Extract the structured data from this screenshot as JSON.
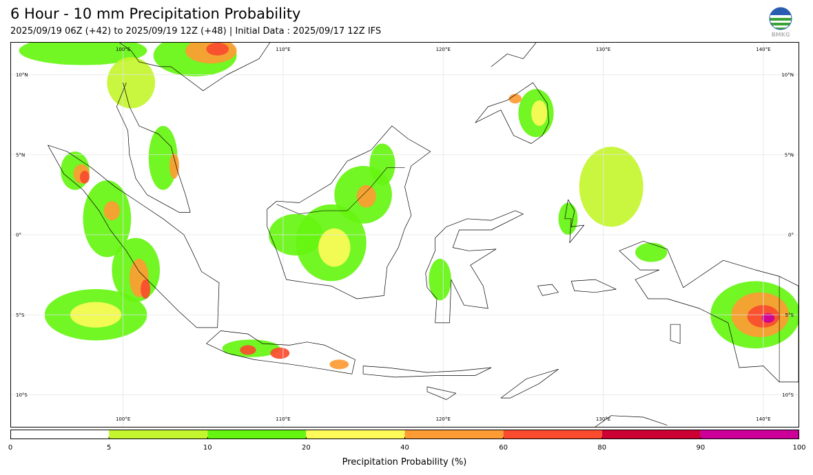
{
  "title": "6 Hour - 10 mm Precipitation Probability",
  "subtitle": "2025/09/19 06Z (+42) to 2025/09/19 12Z (+48) | Initial Data : 2025/09/17 12Z IFS",
  "logo": {
    "icon": "bmkg-logo-icon",
    "text": "BMKG"
  },
  "map": {
    "lon_range": [
      93,
      142.2
    ],
    "lat_range": [
      -12.0,
      12.0
    ],
    "lon_labels": [
      {
        "lon": 100,
        "text": "100°E"
      },
      {
        "lon": 110,
        "text": "110°E"
      },
      {
        "lon": 120,
        "text": "120°E"
      },
      {
        "lon": 130,
        "text": "130°E"
      },
      {
        "lon": 140,
        "text": "140°E"
      }
    ],
    "lat_labels": [
      {
        "lat": 10,
        "text": "10°N"
      },
      {
        "lat": 5,
        "text": "5°N"
      },
      {
        "lat": 0,
        "text": "0°"
      },
      {
        "lat": -5,
        "text": "5°S"
      },
      {
        "lat": -10,
        "text": "10°S"
      }
    ],
    "precip_areas": [
      {
        "lon": 97.5,
        "lat": 11.5,
        "rx": 4.0,
        "ry": 0.9,
        "level": 10
      },
      {
        "lon": 100.5,
        "lat": 9.5,
        "rx": 1.5,
        "ry": 1.6,
        "level": 5
      },
      {
        "lon": 104.5,
        "lat": 11.2,
        "rx": 2.6,
        "ry": 1.3,
        "level": 10
      },
      {
        "lon": 105.5,
        "lat": 11.5,
        "rx": 1.6,
        "ry": 0.8,
        "level": 40
      },
      {
        "lon": 105.9,
        "lat": 11.6,
        "rx": 0.7,
        "ry": 0.4,
        "level": 60
      },
      {
        "lon": 102.5,
        "lat": 4.8,
        "rx": 0.9,
        "ry": 2.0,
        "level": 10
      },
      {
        "lon": 103.2,
        "lat": 4.3,
        "rx": 0.3,
        "ry": 0.8,
        "level": 40
      },
      {
        "lon": 97.0,
        "lat": 4.0,
        "rx": 0.9,
        "ry": 1.2,
        "level": 10
      },
      {
        "lon": 97.4,
        "lat": 3.8,
        "rx": 0.5,
        "ry": 0.6,
        "level": 40
      },
      {
        "lon": 97.6,
        "lat": 3.6,
        "rx": 0.3,
        "ry": 0.4,
        "level": 60
      },
      {
        "lon": 99.0,
        "lat": 1.0,
        "rx": 1.5,
        "ry": 2.4,
        "level": 10
      },
      {
        "lon": 99.3,
        "lat": 1.5,
        "rx": 0.5,
        "ry": 0.6,
        "level": 40
      },
      {
        "lon": 100.8,
        "lat": -2.2,
        "rx": 1.5,
        "ry": 2.0,
        "level": 10
      },
      {
        "lon": 101.0,
        "lat": -2.7,
        "rx": 0.6,
        "ry": 1.2,
        "level": 40
      },
      {
        "lon": 101.4,
        "lat": -3.4,
        "rx": 0.3,
        "ry": 0.6,
        "level": 60
      },
      {
        "lon": 98.3,
        "lat": -5.0,
        "rx": 3.2,
        "ry": 1.6,
        "level": 10
      },
      {
        "lon": 98.3,
        "lat": -5.0,
        "rx": 1.6,
        "ry": 0.8,
        "level": 20
      },
      {
        "lon": 108.0,
        "lat": -7.1,
        "rx": 1.8,
        "ry": 0.55,
        "level": 10
      },
      {
        "lon": 107.8,
        "lat": -7.2,
        "rx": 0.5,
        "ry": 0.3,
        "level": 60
      },
      {
        "lon": 109.8,
        "lat": -7.4,
        "rx": 0.6,
        "ry": 0.35,
        "level": 60
      },
      {
        "lon": 113.5,
        "lat": -8.1,
        "rx": 0.6,
        "ry": 0.3,
        "level": 40
      },
      {
        "lon": 110.8,
        "lat": 0.0,
        "rx": 1.7,
        "ry": 1.3,
        "level": 10
      },
      {
        "lon": 113.0,
        "lat": -0.5,
        "rx": 2.2,
        "ry": 2.4,
        "level": 10
      },
      {
        "lon": 113.2,
        "lat": -0.8,
        "rx": 1.0,
        "ry": 1.2,
        "level": 20
      },
      {
        "lon": 115.0,
        "lat": 2.5,
        "rx": 1.8,
        "ry": 1.8,
        "level": 10
      },
      {
        "lon": 115.2,
        "lat": 2.4,
        "rx": 0.6,
        "ry": 0.7,
        "level": 40
      },
      {
        "lon": 116.2,
        "lat": 4.4,
        "rx": 0.8,
        "ry": 1.3,
        "level": 10
      },
      {
        "lon": 125.8,
        "lat": 7.6,
        "rx": 1.1,
        "ry": 1.5,
        "level": 10
      },
      {
        "lon": 126.0,
        "lat": 7.6,
        "rx": 0.5,
        "ry": 0.8,
        "level": 20
      },
      {
        "lon": 124.5,
        "lat": 8.5,
        "rx": 0.4,
        "ry": 0.3,
        "level": 40
      },
      {
        "lon": 127.8,
        "lat": 1.0,
        "rx": 0.6,
        "ry": 1.0,
        "level": 10
      },
      {
        "lon": 130.5,
        "lat": 3.0,
        "rx": 2.0,
        "ry": 2.5,
        "level": 5
      },
      {
        "lon": 133.0,
        "lat": -1.1,
        "rx": 1.0,
        "ry": 0.6,
        "level": 10
      },
      {
        "lon": 119.8,
        "lat": -2.8,
        "rx": 0.7,
        "ry": 1.3,
        "level": 10
      },
      {
        "lon": 139.5,
        "lat": -5.0,
        "rx": 2.8,
        "ry": 2.1,
        "level": 10
      },
      {
        "lon": 139.8,
        "lat": -5.0,
        "rx": 1.8,
        "ry": 1.4,
        "level": 40
      },
      {
        "lon": 140.0,
        "lat": -5.1,
        "rx": 1.0,
        "ry": 0.7,
        "level": 60
      },
      {
        "lon": 140.3,
        "lat": -5.2,
        "rx": 0.4,
        "ry": 0.3,
        "level": 90
      }
    ],
    "land_outlines": [
      {
        "name": "indochina",
        "points": [
          [
            99.5,
            12.2
          ],
          [
            100.5,
            11.5
          ],
          [
            101.0,
            10.8
          ],
          [
            102.3,
            10.5
          ],
          [
            103.0,
            10.5
          ],
          [
            105.0,
            9.0
          ],
          [
            106.5,
            10.0
          ],
          [
            108.5,
            11.0
          ],
          [
            109.3,
            12.2
          ]
        ]
      },
      {
        "name": "malay-peninsula",
        "points": [
          [
            100.2,
            9.5
          ],
          [
            99.6,
            8.0
          ],
          [
            100.3,
            6.5
          ],
          [
            100.4,
            5.0
          ],
          [
            100.8,
            3.5
          ],
          [
            101.5,
            2.5
          ],
          [
            103.5,
            1.4
          ],
          [
            104.2,
            1.4
          ],
          [
            103.9,
            2.5
          ],
          [
            103.4,
            4.0
          ],
          [
            103.0,
            5.5
          ],
          [
            102.2,
            6.3
          ],
          [
            101.0,
            6.8
          ],
          [
            100.4,
            8.0
          ],
          [
            100.0,
            9.5
          ]
        ]
      },
      {
        "name": "sumatra",
        "points": [
          [
            95.3,
            5.6
          ],
          [
            96.5,
            5.2
          ],
          [
            98.0,
            4.2
          ],
          [
            99.5,
            3.0
          ],
          [
            101.0,
            2.0
          ],
          [
            102.5,
            1.0
          ],
          [
            103.8,
            0.0
          ],
          [
            104.3,
            -1.0
          ],
          [
            104.9,
            -2.3
          ],
          [
            106.0,
            -3.0
          ],
          [
            105.9,
            -5.8
          ],
          [
            104.6,
            -5.8
          ],
          [
            103.5,
            -4.8
          ],
          [
            102.2,
            -3.5
          ],
          [
            101.0,
            -2.3
          ],
          [
            100.2,
            -1.0
          ],
          [
            99.2,
            0.3
          ],
          [
            98.5,
            1.5
          ],
          [
            97.5,
            2.8
          ],
          [
            96.3,
            3.8
          ],
          [
            95.3,
            5.6
          ]
        ]
      },
      {
        "name": "java",
        "points": [
          [
            105.2,
            -6.8
          ],
          [
            106.1,
            -6.0
          ],
          [
            107.8,
            -6.2
          ],
          [
            108.7,
            -6.8
          ],
          [
            110.4,
            -6.9
          ],
          [
            111.5,
            -6.7
          ],
          [
            112.6,
            -6.9
          ],
          [
            114.5,
            -7.8
          ],
          [
            114.3,
            -8.7
          ],
          [
            112.5,
            -8.4
          ],
          [
            110.5,
            -8.1
          ],
          [
            108.2,
            -7.8
          ],
          [
            106.5,
            -7.4
          ],
          [
            105.2,
            -6.8
          ]
        ]
      },
      {
        "name": "borneo",
        "points": [
          [
            109.0,
            1.6
          ],
          [
            109.6,
            2.1
          ],
          [
            111.0,
            2.0
          ],
          [
            113.0,
            3.2
          ],
          [
            114.0,
            4.6
          ],
          [
            115.5,
            5.3
          ],
          [
            116.8,
            6.8
          ],
          [
            117.8,
            6.0
          ],
          [
            119.2,
            5.2
          ],
          [
            118.0,
            4.3
          ],
          [
            117.6,
            3.0
          ],
          [
            118.0,
            1.2
          ],
          [
            117.6,
            0.4
          ],
          [
            117.2,
            -0.8
          ],
          [
            116.5,
            -2.0
          ],
          [
            116.3,
            -3.8
          ],
          [
            114.6,
            -4.0
          ],
          [
            113.0,
            -3.2
          ],
          [
            111.5,
            -3.0
          ],
          [
            110.2,
            -2.8
          ],
          [
            109.6,
            -1.0
          ],
          [
            109.0,
            0.5
          ],
          [
            109.0,
            1.6
          ]
        ]
      },
      {
        "name": "sulawesi",
        "points": [
          [
            119.5,
            -0.2
          ],
          [
            120.2,
            0.5
          ],
          [
            121.5,
            1.0
          ],
          [
            123.0,
            0.9
          ],
          [
            124.5,
            1.5
          ],
          [
            125.0,
            1.3
          ],
          [
            123.0,
            0.3
          ],
          [
            121.0,
            0.3
          ],
          [
            120.6,
            -0.8
          ],
          [
            121.6,
            -1.0
          ],
          [
            123.3,
            -0.9
          ],
          [
            121.7,
            -1.9
          ],
          [
            122.5,
            -3.2
          ],
          [
            122.8,
            -4.6
          ],
          [
            121.3,
            -4.4
          ],
          [
            120.5,
            -2.8
          ],
          [
            120.4,
            -5.5
          ],
          [
            119.5,
            -5.5
          ],
          [
            119.6,
            -4.0
          ],
          [
            119.0,
            -3.3
          ],
          [
            118.9,
            -2.4
          ],
          [
            119.5,
            -1.0
          ],
          [
            119.5,
            -0.2
          ]
        ]
      },
      {
        "name": "mindanao",
        "points": [
          [
            122.0,
            7.0
          ],
          [
            122.8,
            8.0
          ],
          [
            124.0,
            8.4
          ],
          [
            125.6,
            9.5
          ],
          [
            126.5,
            8.2
          ],
          [
            126.6,
            7.0
          ],
          [
            126.2,
            6.2
          ],
          [
            125.5,
            5.7
          ],
          [
            124.4,
            6.2
          ],
          [
            123.6,
            7.8
          ],
          [
            122.0,
            7.0
          ]
        ]
      },
      {
        "name": "visayas",
        "points": [
          [
            123.0,
            10.5
          ],
          [
            124.0,
            11.3
          ],
          [
            125.0,
            11.0
          ],
          [
            125.8,
            12.0
          ]
        ]
      },
      {
        "name": "halmahera",
        "points": [
          [
            127.8,
            2.2
          ],
          [
            128.2,
            1.5
          ],
          [
            128.0,
            0.5
          ],
          [
            128.8,
            0.6
          ],
          [
            127.9,
            -0.5
          ],
          [
            128.0,
            1.0
          ],
          [
            127.6,
            1.0
          ],
          [
            127.8,
            2.2
          ]
        ]
      },
      {
        "name": "seram",
        "points": [
          [
            128.0,
            -2.9
          ],
          [
            129.5,
            -2.8
          ],
          [
            130.8,
            -3.4
          ],
          [
            129.5,
            -3.6
          ],
          [
            128.2,
            -3.5
          ],
          [
            128.0,
            -2.9
          ]
        ]
      },
      {
        "name": "buru",
        "points": [
          [
            125.9,
            -3.2
          ],
          [
            126.8,
            -3.1
          ],
          [
            127.2,
            -3.6
          ],
          [
            126.2,
            -3.8
          ],
          [
            125.9,
            -3.2
          ]
        ]
      },
      {
        "name": "lesser-sunda",
        "points": [
          [
            115.0,
            -8.2
          ],
          [
            116.5,
            -8.3
          ],
          [
            119.0,
            -8.6
          ],
          [
            121.0,
            -8.5
          ],
          [
            123.0,
            -8.3
          ],
          [
            122.0,
            -8.8
          ],
          [
            119.5,
            -8.8
          ],
          [
            117.0,
            -8.9
          ],
          [
            115.0,
            -8.7
          ],
          [
            115.0,
            -8.2
          ]
        ]
      },
      {
        "name": "timor",
        "points": [
          [
            123.6,
            -10.2
          ],
          [
            125.2,
            -9.0
          ],
          [
            127.2,
            -8.4
          ],
          [
            126.0,
            -9.3
          ],
          [
            124.2,
            -10.2
          ],
          [
            123.6,
            -10.2
          ]
        ]
      },
      {
        "name": "sumba",
        "points": [
          [
            119.0,
            -9.5
          ],
          [
            120.8,
            -9.9
          ],
          [
            120.2,
            -10.3
          ],
          [
            119.0,
            -9.8
          ],
          [
            119.0,
            -9.5
          ]
        ]
      },
      {
        "name": "new-guinea",
        "points": [
          [
            131.0,
            -1.0
          ],
          [
            132.5,
            -0.4
          ],
          [
            134.0,
            -0.9
          ],
          [
            135.0,
            -3.3
          ],
          [
            137.5,
            -1.6
          ],
          [
            139.5,
            -2.2
          ],
          [
            141.0,
            -2.6
          ],
          [
            142.2,
            -3.2
          ],
          [
            142.2,
            -9.2
          ],
          [
            141.0,
            -9.2
          ],
          [
            140.0,
            -8.2
          ],
          [
            138.5,
            -8.3
          ],
          [
            137.8,
            -5.5
          ],
          [
            136.0,
            -4.6
          ],
          [
            134.0,
            -4.0
          ],
          [
            132.8,
            -4.0
          ],
          [
            132.0,
            -2.8
          ],
          [
            133.5,
            -2.2
          ],
          [
            132.3,
            -2.2
          ],
          [
            131.0,
            -1.0
          ]
        ]
      },
      {
        "name": "aru",
        "points": [
          [
            134.2,
            -5.6
          ],
          [
            134.8,
            -5.6
          ],
          [
            134.8,
            -6.8
          ],
          [
            134.2,
            -6.6
          ],
          [
            134.2,
            -5.6
          ]
        ]
      },
      {
        "name": "australia-north",
        "points": [
          [
            129.5,
            -12.0
          ],
          [
            130.5,
            -11.3
          ],
          [
            132.5,
            -11.4
          ],
          [
            134.0,
            -11.9
          ]
        ]
      }
    ],
    "borders": [
      {
        "name": "borneo-border",
        "points": [
          [
            109.6,
            1.9
          ],
          [
            111.0,
            1.3
          ],
          [
            112.5,
            1.5
          ],
          [
            114.0,
            1.5
          ],
          [
            115.5,
            3.0
          ],
          [
            116.5,
            4.2
          ],
          [
            117.6,
            4.2
          ]
        ]
      },
      {
        "name": "png-border",
        "points": [
          [
            141.0,
            -2.6
          ],
          [
            141.0,
            -9.2
          ]
        ]
      }
    ]
  },
  "colorbar": {
    "label": "Precipitation Probability (%)",
    "bins": [
      {
        "from": 0,
        "to": 5,
        "color": "#ffffff"
      },
      {
        "from": 5,
        "to": 10,
        "color": "#c4f52e"
      },
      {
        "from": 10,
        "to": 20,
        "color": "#66f511"
      },
      {
        "from": 20,
        "to": 40,
        "color": "#fdfa59"
      },
      {
        "from": 40,
        "to": 60,
        "color": "#fd9b34"
      },
      {
        "from": 60,
        "to": 80,
        "color": "#fa4b2e"
      },
      {
        "from": 80,
        "to": 90,
        "color": "#cc0033"
      },
      {
        "from": 90,
        "to": 100,
        "color": "#cc0099"
      }
    ],
    "ticks": [
      "0",
      "5",
      "10",
      "20",
      "40",
      "60",
      "80",
      "90",
      "100"
    ]
  }
}
